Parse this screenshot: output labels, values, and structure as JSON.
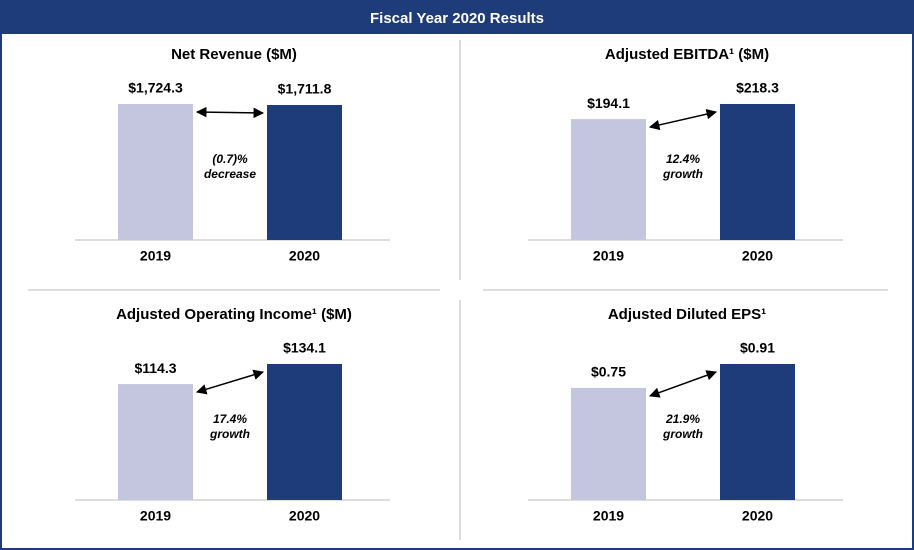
{
  "header": {
    "title": "Fiscal Year 2020 Results"
  },
  "chart_data": [
    {
      "type": "bar",
      "title": "Net Revenue ($M)",
      "categories": [
        "2019",
        "2020"
      ],
      "values": [
        1724.3,
        1711.8
      ],
      "value_labels": [
        "$1,724.3",
        "$1,711.8"
      ],
      "colors": [
        "#c4c6e0",
        "#1f3c7a"
      ],
      "annotation": [
        "(0.7)%",
        "decrease"
      ]
    },
    {
      "type": "bar",
      "title": "Adjusted EBITDA¹ ($M)",
      "categories": [
        "2019",
        "2020"
      ],
      "values": [
        194.1,
        218.3
      ],
      "value_labels": [
        "$194.1",
        "$218.3"
      ],
      "colors": [
        "#c4c6e0",
        "#1f3c7a"
      ],
      "annotation": [
        "12.4%",
        "growth"
      ]
    },
    {
      "type": "bar",
      "title": "Adjusted Operating Income¹ ($M)",
      "categories": [
        "2019",
        "2020"
      ],
      "values": [
        114.3,
        134.1
      ],
      "value_labels": [
        "$114.3",
        "$134.1"
      ],
      "colors": [
        "#c4c6e0",
        "#1f3c7a"
      ],
      "annotation": [
        "17.4%",
        "growth"
      ]
    },
    {
      "type": "bar",
      "title": "Adjusted Diluted EPS¹",
      "categories": [
        "2019",
        "2020"
      ],
      "values": [
        0.75,
        0.91
      ],
      "value_labels": [
        "$0.75",
        "$0.91"
      ],
      "colors": [
        "#c4c6e0",
        "#1f3c7a"
      ],
      "annotation": [
        "21.9%",
        "growth"
      ]
    }
  ]
}
